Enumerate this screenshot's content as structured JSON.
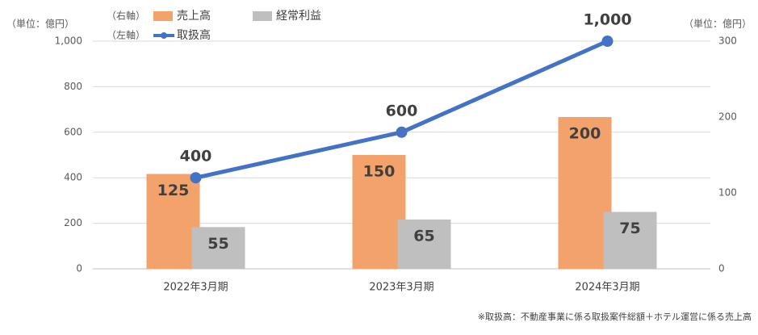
{
  "chart_data": {
    "type": "combo",
    "categories": [
      "2022年3月期",
      "2023年3月期",
      "2024年3月期"
    ],
    "series": [
      {
        "name": "売上高",
        "type": "bar",
        "axis": "y2",
        "color": "#f2a26a",
        "values": [
          125,
          150,
          200
        ]
      },
      {
        "name": "経常利益",
        "type": "bar",
        "axis": "y2",
        "color": "#bfbfbf",
        "values": [
          55,
          65,
          75
        ]
      },
      {
        "name": "取扱高",
        "type": "line",
        "axis": "y",
        "color": "#4472c4",
        "values": [
          400,
          600,
          1000
        ],
        "value_labels": [
          "400",
          "600",
          "1,000"
        ]
      }
    ],
    "legend_axis_notes": [
      "（右軸）",
      "（左軸）"
    ],
    "y_unit_label": "（単位：億円）",
    "y2_unit_label": "（単位：億円）",
    "ylim": [
      0,
      1000
    ],
    "yticks": [
      0,
      200,
      400,
      600,
      800,
      {
        "value": 1000,
        "label": "1,000"
      }
    ],
    "y2lim": [
      0,
      300
    ],
    "y2ticks": [
      0,
      100,
      200,
      300
    ],
    "grid": true,
    "note": "※取扱高：不動産事業に係る取扱案件総額＋ホテル運営に係る売上高"
  }
}
